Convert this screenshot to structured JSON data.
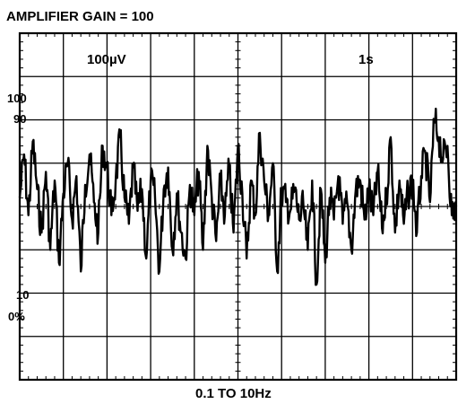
{
  "chart_data": {
    "type": "line",
    "title": "AMPLIFIER GAIN = 100",
    "xlabel": "0.1 TO 10Hz",
    "ylabel": "",
    "vertical_scale_label": "100µV",
    "horizontal_scale_label": "1s",
    "divisions": {
      "horizontal": 10,
      "vertical": 8
    },
    "grid": true,
    "minor_ticks_on_center_axes": true,
    "y_units": "µV",
    "x_units": "s",
    "xlim": [
      0,
      10
    ],
    "ylim": [
      -400,
      400
    ],
    "side_markers": [
      "100",
      "90",
      "10",
      "0%"
    ],
    "series": [
      {
        "color": "#000000",
        "x": [
          0.0,
          0.1,
          0.2,
          0.3,
          0.4,
          0.5,
          0.6,
          0.7,
          0.8,
          0.9,
          1.0,
          1.1,
          1.2,
          1.3,
          1.4,
          1.5,
          1.6,
          1.7,
          1.8,
          1.9,
          2.0,
          2.1,
          2.2,
          2.3,
          2.4,
          2.5,
          2.6,
          2.7,
          2.8,
          2.9,
          3.0,
          3.1,
          3.2,
          3.3,
          3.4,
          3.5,
          3.6,
          3.7,
          3.8,
          3.9,
          4.0,
          4.1,
          4.2,
          4.3,
          4.4,
          4.5,
          4.6,
          4.7,
          4.8,
          4.9,
          5.0,
          5.1,
          5.2,
          5.3,
          5.4,
          5.5,
          5.6,
          5.7,
          5.8,
          5.9,
          6.0,
          6.1,
          6.2,
          6.3,
          6.4,
          6.5,
          6.6,
          6.7,
          6.8,
          6.9,
          7.0,
          7.1,
          7.2,
          7.3,
          7.4,
          7.5,
          7.6,
          7.7,
          7.8,
          7.9,
          8.0,
          8.1,
          8.2,
          8.3,
          8.4,
          8.5,
          8.6,
          8.7,
          8.8,
          8.9,
          9.0,
          9.1,
          9.2,
          9.3,
          9.4,
          9.5,
          9.6,
          9.7,
          9.8,
          9.9,
          10.0
        ],
        "y": [
          20,
          120,
          -20,
          150,
          40,
          -60,
          80,
          -100,
          60,
          -130,
          30,
          100,
          -30,
          70,
          -150,
          50,
          120,
          10,
          -60,
          140,
          90,
          -20,
          60,
          160,
          20,
          -40,
          90,
          -10,
          40,
          -120,
          60,
          20,
          -150,
          40,
          90,
          -100,
          30,
          -60,
          -120,
          50,
          -20,
          80,
          -100,
          140,
          20,
          -80,
          60,
          -20,
          90,
          -60,
          140,
          30,
          -120,
          60,
          -20,
          170,
          60,
          -20,
          100,
          -150,
          40,
          10,
          -10,
          40,
          -30,
          0,
          -100,
          60,
          -180,
          40,
          -130,
          20,
          -30,
          70,
          -40,
          10,
          -100,
          40,
          60,
          -30,
          40,
          -20,
          80,
          -50,
          20,
          160,
          -60,
          60,
          -40,
          30,
          60,
          -60,
          70,
          120,
          10,
          200,
          160,
          110,
          140,
          -20,
          0
        ]
      }
    ]
  }
}
